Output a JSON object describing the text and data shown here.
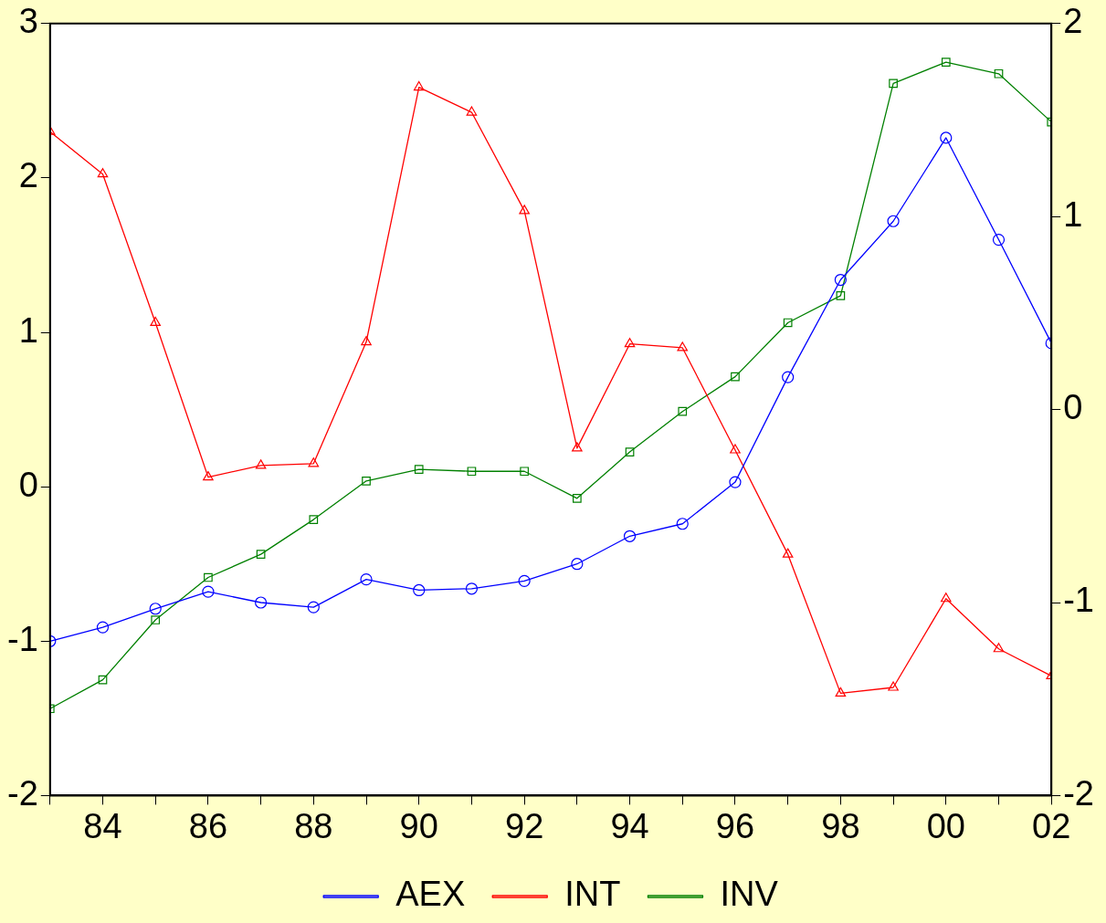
{
  "chart_data": {
    "type": "line",
    "x": [
      1983,
      1984,
      1985,
      1986,
      1987,
      1988,
      1989,
      1990,
      1991,
      1992,
      1993,
      1994,
      1995,
      1996,
      1997,
      1998,
      1999,
      2000,
      2001,
      2002
    ],
    "series": [
      {
        "name": "AEX",
        "color": "#0000ff",
        "marker": "circle",
        "values": [
          -1.0,
          -0.91,
          -0.79,
          -0.68,
          -0.75,
          -0.78,
          -0.6,
          -0.67,
          -0.66,
          -0.61,
          -0.5,
          -0.32,
          -0.24,
          0.03,
          0.71,
          1.34,
          1.72,
          2.26,
          1.6,
          0.93
        ]
      },
      {
        "name": "INT",
        "color": "#ff0000",
        "marker": "triangle",
        "axis": "y2",
        "values": [
          1.44,
          1.22,
          0.45,
          -0.35,
          -0.29,
          -0.28,
          0.35,
          1.67,
          1.54,
          1.03,
          -0.2,
          0.34,
          0.32,
          -0.21,
          -0.75,
          -1.47,
          -1.44,
          -0.98,
          -1.24,
          -1.38
        ]
      },
      {
        "name": "INV",
        "color": "#008000",
        "marker": "square",
        "axis": "y2",
        "values": [
          -1.55,
          -1.4,
          -1.09,
          -0.87,
          -0.75,
          -0.57,
          -0.37,
          -0.31,
          -0.32,
          -0.32,
          -0.46,
          -0.22,
          -0.01,
          0.17,
          0.45,
          0.59,
          1.69,
          1.8,
          1.74,
          1.49
        ]
      }
    ],
    "xlim": [
      1983,
      2002
    ],
    "xticks": [
      {
        "value": 1983,
        "label": null
      },
      {
        "value": 1984,
        "label": "84"
      },
      {
        "value": 1985,
        "label": null
      },
      {
        "value": 1986,
        "label": "86"
      },
      {
        "value": 1987,
        "label": null
      },
      {
        "value": 1988,
        "label": "88"
      },
      {
        "value": 1989,
        "label": null
      },
      {
        "value": 1990,
        "label": "90"
      },
      {
        "value": 1991,
        "label": null
      },
      {
        "value": 1992,
        "label": "92"
      },
      {
        "value": 1993,
        "label": null
      },
      {
        "value": 1994,
        "label": "94"
      },
      {
        "value": 1995,
        "label": null
      },
      {
        "value": 1996,
        "label": "96"
      },
      {
        "value": 1997,
        "label": null
      },
      {
        "value": 1998,
        "label": "98"
      },
      {
        "value": 1999,
        "label": null
      },
      {
        "value": 2000,
        "label": "00"
      },
      {
        "value": 2001,
        "label": null
      },
      {
        "value": 2002,
        "label": "02"
      }
    ],
    "ylim": [
      -2,
      3
    ],
    "yticks": [
      -2,
      -1,
      0,
      1,
      2,
      3
    ],
    "y2lim": [
      -2,
      2
    ],
    "y2ticks": [
      -2,
      -1,
      0,
      1,
      2
    ],
    "legend": "bottom",
    "line_style": "solid"
  }
}
